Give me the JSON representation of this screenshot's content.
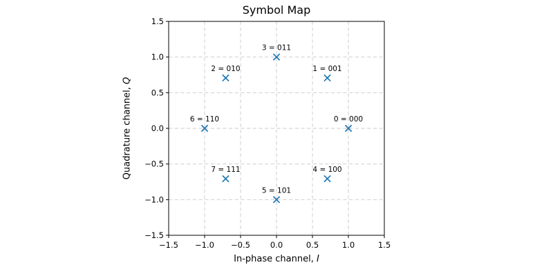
{
  "figure": {
    "background": "#ffffff"
  },
  "chart_data": {
    "type": "scatter",
    "title": "Symbol Map",
    "xlabel": "In-phase channel, I",
    "ylabel": "Quadrature channel, Q",
    "xlabel_parts": {
      "text": "In-phase channel, ",
      "var": "I"
    },
    "ylabel_parts": {
      "text": "Quadrature channel, ",
      "var": "Q"
    },
    "xlim": [
      -1.5,
      1.5
    ],
    "ylim": [
      -1.5,
      1.5
    ],
    "xticks": [
      -1.5,
      -1.0,
      -0.5,
      0.0,
      0.5,
      1.0,
      1.5
    ],
    "yticks": [
      -1.5,
      -1.0,
      -0.5,
      0.0,
      0.5,
      1.0,
      1.5
    ],
    "grid": true,
    "grid_linestyle": "dashed",
    "grid_color": "#c9c9c9",
    "frame_color": "#000000",
    "marker": "x",
    "marker_color": "#1f77b4",
    "points": [
      {
        "symbol": 0,
        "bits": "000",
        "label": "0 = 000",
        "x": 1.0,
        "y": 0.0
      },
      {
        "symbol": 1,
        "bits": "001",
        "label": "1 = 001",
        "x": 0.707,
        "y": 0.707
      },
      {
        "symbol": 2,
        "bits": "010",
        "label": "2 = 010",
        "x": -0.707,
        "y": 0.707
      },
      {
        "symbol": 3,
        "bits": "011",
        "label": "3 = 011",
        "x": 0.0,
        "y": 1.0
      },
      {
        "symbol": 4,
        "bits": "100",
        "label": "4 = 100",
        "x": 0.707,
        "y": -0.707
      },
      {
        "symbol": 5,
        "bits": "101",
        "label": "5 = 101",
        "x": 0.0,
        "y": -1.0
      },
      {
        "symbol": 6,
        "bits": "110",
        "label": "6 = 110",
        "x": -1.0,
        "y": 0.0
      },
      {
        "symbol": 7,
        "bits": "111",
        "label": "7 = 111",
        "x": -0.707,
        "y": -0.707
      }
    ]
  }
}
